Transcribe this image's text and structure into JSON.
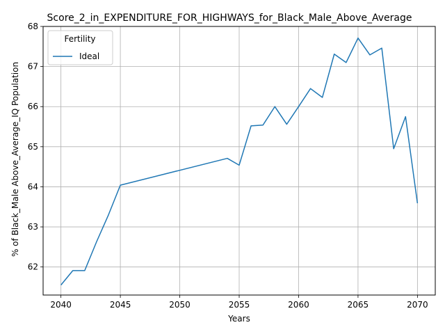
{
  "chart_data": {
    "type": "line",
    "title": "Score_2_in_EXPENDITURE_FOR_HIGHWAYS_for_Black_Male_Above_Average",
    "xlabel": "Years",
    "ylabel": "% of Black_Male Above_Average_IQ Population",
    "xlim": [
      2038.5,
      2071.5
    ],
    "ylim": [
      61.3,
      68.0
    ],
    "xticks": [
      2040,
      2045,
      2050,
      2055,
      2060,
      2065,
      2070
    ],
    "yticks": [
      62,
      63,
      64,
      65,
      66,
      67,
      68
    ],
    "grid": true,
    "legend": {
      "title": "Fertility",
      "placement": "top-left"
    },
    "series": [
      {
        "name": "Ideal",
        "color": "#1f77b4",
        "x": [
          2040,
          2041,
          2042,
          2043,
          2044,
          2045,
          2054,
          2055,
          2056,
          2057,
          2058,
          2059,
          2060,
          2061,
          2062,
          2063,
          2064,
          2065,
          2066,
          2067,
          2068,
          2069,
          2070
        ],
        "y": [
          61.55,
          61.91,
          61.91,
          62.63,
          63.3,
          64.04,
          64.71,
          64.54,
          65.52,
          65.54,
          66.0,
          65.56,
          66.0,
          66.45,
          66.23,
          67.31,
          67.1,
          67.71,
          67.29,
          67.46,
          64.95,
          65.75,
          63.59
        ]
      }
    ]
  }
}
